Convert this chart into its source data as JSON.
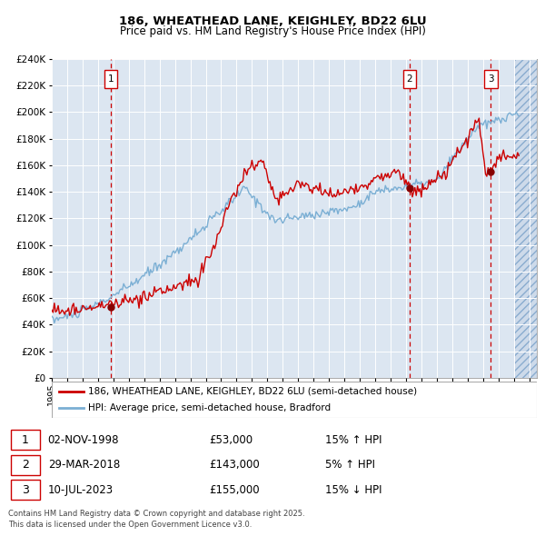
{
  "title": "186, WHEATHEAD LANE, KEIGHLEY, BD22 6LU",
  "subtitle": "Price paid vs. HM Land Registry's House Price Index (HPI)",
  "legend_line1": "186, WHEATHEAD LANE, KEIGHLEY, BD22 6LU (semi-detached house)",
  "legend_line2": "HPI: Average price, semi-detached house, Bradford",
  "red_color": "#cc0000",
  "blue_color": "#7bafd4",
  "bg_color": "#dce6f1",
  "footnote": "Contains HM Land Registry data © Crown copyright and database right 2025.\nThis data is licensed under the Open Government Licence v3.0.",
  "sales": [
    {
      "num": 1,
      "date": "02-NOV-1998",
      "price": 53000,
      "pct": "15% ↑ HPI",
      "year": 1998.84
    },
    {
      "num": 2,
      "date": "29-MAR-2018",
      "price": 143000,
      "pct": "5% ↑ HPI",
      "year": 2018.24
    },
    {
      "num": 3,
      "date": "10-JUL-2023",
      "price": 155000,
      "pct": "15% ↓ HPI",
      "year": 2023.52
    }
  ],
  "ylim": [
    0,
    240000
  ],
  "ytick_step": 20000,
  "xlim_start": 1995,
  "xlim_end": 2026.5,
  "hatch_start": 2025.0
}
